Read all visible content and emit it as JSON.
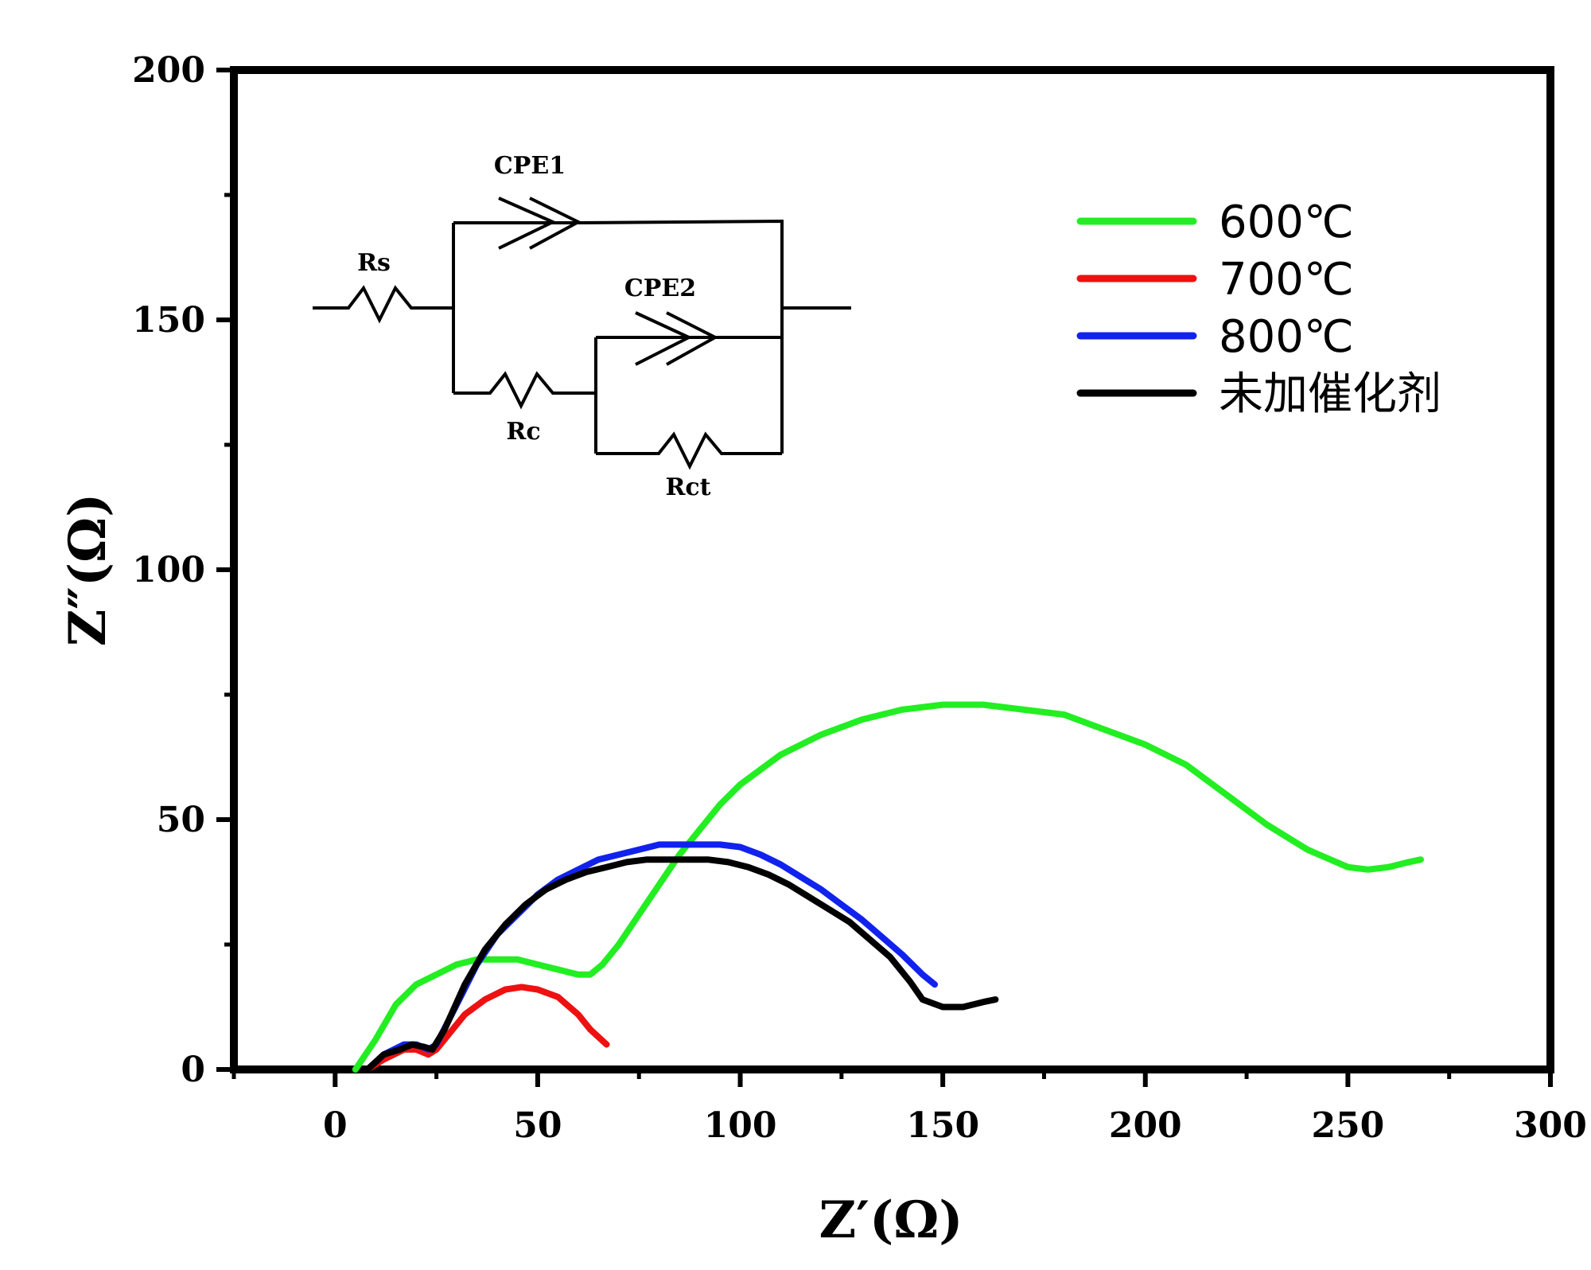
{
  "chart_data": {
    "type": "line",
    "title": "",
    "xlabel": "Z′(Ω)",
    "ylabel": "Z″(Ω)",
    "xlim": [
      -25,
      300
    ],
    "ylim": [
      0,
      200
    ],
    "xticks": [
      0,
      50,
      100,
      150,
      200,
      250,
      300
    ],
    "yticks": [
      0,
      50,
      100,
      150,
      200
    ],
    "legend_position": "top-right",
    "series": [
      {
        "name": "600℃",
        "color": "#22ee22",
        "points": [
          [
            5,
            0
          ],
          [
            10,
            6
          ],
          [
            15,
            13
          ],
          [
            20,
            17
          ],
          [
            25,
            19
          ],
          [
            30,
            21
          ],
          [
            35,
            22
          ],
          [
            40,
            22
          ],
          [
            45,
            22
          ],
          [
            50,
            21
          ],
          [
            55,
            20
          ],
          [
            60,
            19
          ],
          [
            63,
            19
          ],
          [
            66,
            21
          ],
          [
            70,
            25
          ],
          [
            75,
            31
          ],
          [
            80,
            37
          ],
          [
            85,
            43
          ],
          [
            90,
            48
          ],
          [
            95,
            53
          ],
          [
            100,
            57
          ],
          [
            110,
            63
          ],
          [
            120,
            67
          ],
          [
            130,
            70
          ],
          [
            140,
            72
          ],
          [
            150,
            73
          ],
          [
            160,
            73
          ],
          [
            170,
            72
          ],
          [
            180,
            71
          ],
          [
            190,
            68
          ],
          [
            200,
            65
          ],
          [
            210,
            61
          ],
          [
            220,
            55
          ],
          [
            230,
            49
          ],
          [
            240,
            44
          ],
          [
            250,
            40.5
          ],
          [
            255,
            40
          ],
          [
            260,
            40.5
          ],
          [
            265,
            41.5
          ],
          [
            268,
            42
          ]
        ]
      },
      {
        "name": "700℃",
        "color": "#ee1111",
        "points": [
          [
            8,
            0
          ],
          [
            12,
            2
          ],
          [
            17,
            4
          ],
          [
            20,
            4
          ],
          [
            23,
            3
          ],
          [
            25,
            4
          ],
          [
            28,
            7
          ],
          [
            32,
            11
          ],
          [
            37,
            14
          ],
          [
            42,
            16
          ],
          [
            46,
            16.5
          ],
          [
            50,
            16
          ],
          [
            55,
            14.5
          ],
          [
            60,
            11
          ],
          [
            63,
            8
          ],
          [
            67,
            5
          ]
        ]
      },
      {
        "name": "800℃",
        "color": "#1122ee",
        "points": [
          [
            8,
            0
          ],
          [
            12,
            3
          ],
          [
            17,
            5
          ],
          [
            20,
            5
          ],
          [
            23,
            4
          ],
          [
            25,
            5
          ],
          [
            30,
            13
          ],
          [
            35,
            21
          ],
          [
            40,
            27
          ],
          [
            45,
            31
          ],
          [
            50,
            35
          ],
          [
            55,
            38
          ],
          [
            60,
            40
          ],
          [
            65,
            42
          ],
          [
            70,
            43
          ],
          [
            75,
            44
          ],
          [
            80,
            45
          ],
          [
            85,
            45
          ],
          [
            90,
            45
          ],
          [
            95,
            45
          ],
          [
            100,
            44.5
          ],
          [
            105,
            43
          ],
          [
            110,
            41
          ],
          [
            115,
            38.5
          ],
          [
            120,
            36
          ],
          [
            125,
            33
          ],
          [
            130,
            30
          ],
          [
            135,
            26.5
          ],
          [
            140,
            23
          ],
          [
            145,
            19
          ],
          [
            148,
            17
          ]
        ]
      },
      {
        "name": "未加催化剂",
        "color": "#000000",
        "points": [
          [
            8,
            0
          ],
          [
            12,
            3
          ],
          [
            16,
            4
          ],
          [
            19,
            5
          ],
          [
            22,
            4.5
          ],
          [
            24,
            4
          ],
          [
            27,
            8
          ],
          [
            32,
            17
          ],
          [
            37,
            24
          ],
          [
            42,
            29
          ],
          [
            47,
            33
          ],
          [
            52,
            36
          ],
          [
            57,
            38
          ],
          [
            62,
            39.5
          ],
          [
            67,
            40.5
          ],
          [
            72,
            41.5
          ],
          [
            77,
            42
          ],
          [
            82,
            42
          ],
          [
            87,
            42
          ],
          [
            92,
            42
          ],
          [
            97,
            41.5
          ],
          [
            102,
            40.5
          ],
          [
            107,
            39
          ],
          [
            112,
            37
          ],
          [
            117,
            34.5
          ],
          [
            122,
            32
          ],
          [
            127,
            29.5
          ],
          [
            132,
            26
          ],
          [
            137,
            22.5
          ],
          [
            142,
            17.5
          ],
          [
            145,
            14
          ],
          [
            150,
            12.5
          ],
          [
            155,
            12.5
          ],
          [
            160,
            13.5
          ],
          [
            163,
            14
          ]
        ]
      }
    ]
  },
  "inset_circuit": {
    "labels": {
      "rs": "Rs",
      "cpe1": "CPE1",
      "cpe2": "CPE2",
      "rc": "Rc",
      "rct": "Rct"
    }
  }
}
